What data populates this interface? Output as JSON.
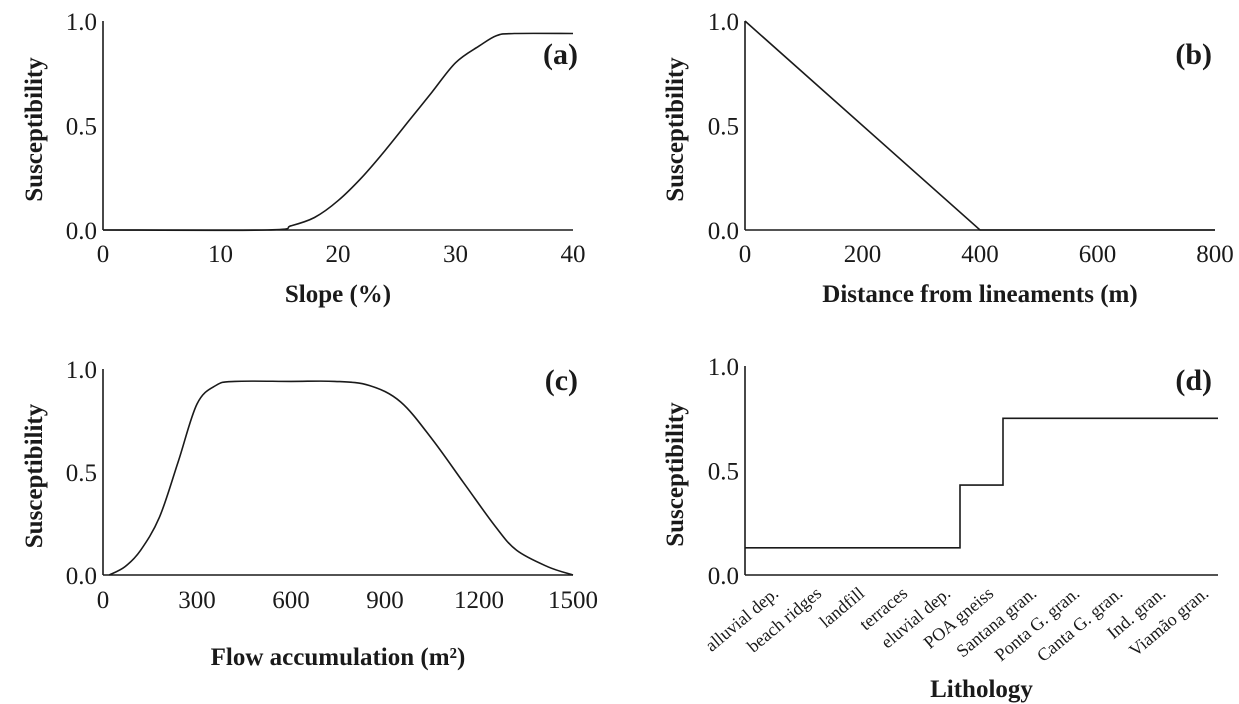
{
  "chart_data": [
    {
      "id": "a",
      "type": "line",
      "panel_label": "(a)",
      "xlabel": "Slope (%)",
      "ylabel": "Susceptibility",
      "xlim": [
        0,
        40
      ],
      "ylim": [
        0,
        1
      ],
      "xticks": [
        0,
        10,
        20,
        30,
        40
      ],
      "xtick_labels": [
        "0",
        "10",
        "20",
        "30",
        "40"
      ],
      "yticks": [
        0,
        0.5,
        1
      ],
      "ytick_labels": [
        "0.0",
        "0.5",
        "1.0"
      ],
      "points": [
        [
          0,
          0
        ],
        [
          14,
          0
        ],
        [
          16,
          0.02
        ],
        [
          18,
          0.06
        ],
        [
          20,
          0.14
        ],
        [
          22,
          0.25
        ],
        [
          24,
          0.38
        ],
        [
          26,
          0.52
        ],
        [
          28,
          0.66
        ],
        [
          30,
          0.8
        ],
        [
          32,
          0.88
        ],
        [
          33.5,
          0.93
        ],
        [
          35,
          0.94
        ],
        [
          40,
          0.94
        ]
      ]
    },
    {
      "id": "b",
      "type": "line",
      "panel_label": "(b)",
      "xlabel": "Distance from lineaments (m)",
      "ylabel": "Susceptibility",
      "xlim": [
        0,
        800
      ],
      "ylim": [
        0,
        1
      ],
      "xticks": [
        0,
        200,
        400,
        600,
        800
      ],
      "xtick_labels": [
        "0",
        "200",
        "400",
        "600",
        "800"
      ],
      "yticks": [
        0,
        0.5,
        1
      ],
      "ytick_labels": [
        "0.0",
        "0.5",
        "1.0"
      ],
      "points": [
        [
          0,
          1
        ],
        [
          400,
          0
        ],
        [
          800,
          0
        ]
      ]
    },
    {
      "id": "c",
      "type": "line",
      "panel_label": "(c)",
      "xlabel": "Flow accumulation (m²)",
      "ylabel": "Susceptibility",
      "xlim": [
        0,
        1500
      ],
      "ylim": [
        0,
        1
      ],
      "xticks": [
        0,
        300,
        600,
        900,
        1200,
        1500
      ],
      "xtick_labels": [
        "0",
        "300",
        "600",
        "900",
        "1200",
        "1500"
      ],
      "yticks": [
        0,
        0.5,
        1
      ],
      "ytick_labels": [
        "0.0",
        "0.5",
        "1.0"
      ],
      "points": [
        [
          20,
          0
        ],
        [
          70,
          0.04
        ],
        [
          120,
          0.12
        ],
        [
          180,
          0.28
        ],
        [
          240,
          0.55
        ],
        [
          300,
          0.83
        ],
        [
          360,
          0.92
        ],
        [
          420,
          0.94
        ],
        [
          600,
          0.94
        ],
        [
          740,
          0.94
        ],
        [
          850,
          0.92
        ],
        [
          950,
          0.84
        ],
        [
          1050,
          0.66
        ],
        [
          1150,
          0.45
        ],
        [
          1250,
          0.24
        ],
        [
          1320,
          0.12
        ],
        [
          1420,
          0.04
        ],
        [
          1500,
          0
        ]
      ]
    },
    {
      "id": "d",
      "type": "step",
      "panel_label": "(d)",
      "xlabel": "Lithology",
      "ylabel": "Susceptibility",
      "ylim": [
        0,
        1
      ],
      "yticks": [
        0,
        0.5,
        1
      ],
      "ytick_labels": [
        "0.0",
        "0.5",
        "1.0"
      ],
      "categories": [
        "alluvial dep.",
        "beach ridges",
        "landfill",
        "terraces",
        "eluvial dep.",
        "POA gneiss",
        "Santana gran.",
        "Ponta G. gran.",
        "Canta G. gran.",
        "Ind. gran.",
        "Viamão gran."
      ],
      "values": [
        0.13,
        0.13,
        0.13,
        0.13,
        0.13,
        0.43,
        0.75,
        0.75,
        0.75,
        0.75,
        0.75
      ]
    }
  ]
}
